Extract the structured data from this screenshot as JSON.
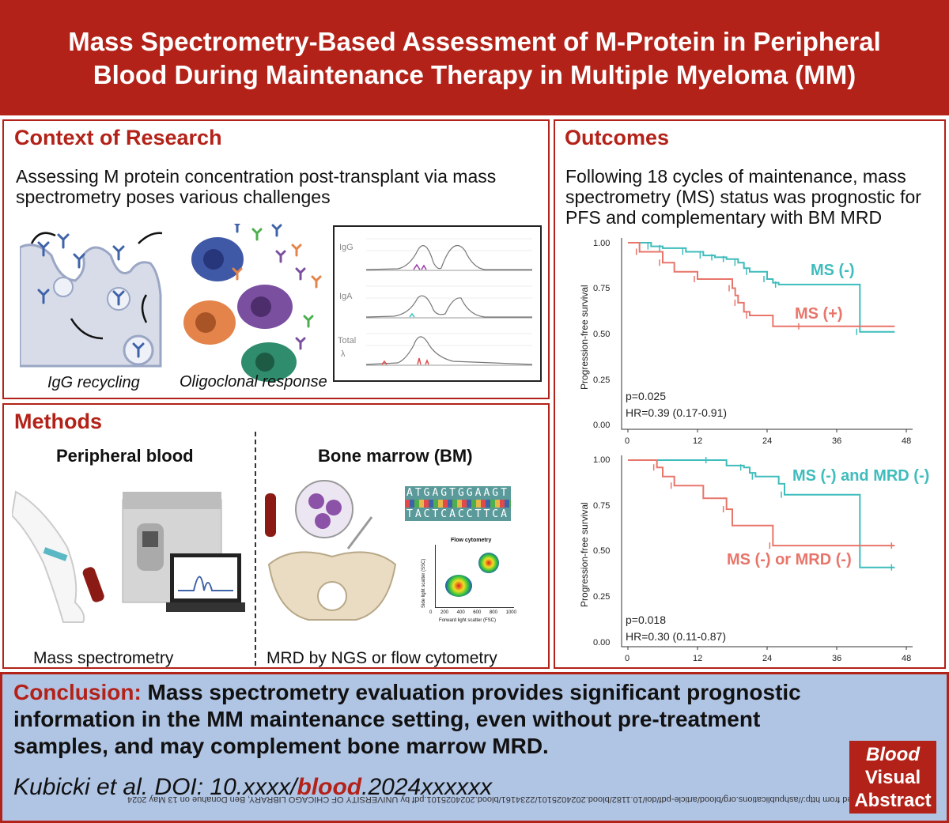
{
  "title": {
    "line1": "Mass Spectrometry-Based Assessment of M-Protein in Peripheral",
    "line2": "Blood During Maintenance Therapy in Multiple Myeloma (MM)"
  },
  "context": {
    "heading": "Context of Research",
    "text1": "Assessing M protein concentration post-transplant via mass",
    "text2": "spectrometry poses various challenges",
    "caption_left": "IgG recycling",
    "caption_right": "Oligoclonal response",
    "spectra_labels": [
      "IgG",
      "IgA",
      "Total",
      "λ"
    ]
  },
  "methods": {
    "heading": "Methods",
    "left_title": "Peripheral blood",
    "right_title": "Bone marrow (BM)",
    "left_caption": "Mass spectrometry",
    "right_caption": "MRD by NGS or flow cytometry",
    "dna_top": "ATGAGTGGAAGT",
    "dna_bottom": "TACTCACCTTCA",
    "flow": {
      "title": "Flow cytometry",
      "xlabel": "Forward light scatter (FSC)",
      "ylabel": "Side light scatter (SSC)",
      "ticks": [
        "0",
        "200",
        "400",
        "600",
        "800",
        "1000"
      ]
    }
  },
  "outcomes": {
    "heading": "Outcomes",
    "text1": "Following 18 cycles of maintenance, mass",
    "text2": "spectrometry (MS) status was prognostic for",
    "text3": "PFS and complementary with BM MRD"
  },
  "colors": {
    "accent": "#b32218",
    "teal": "#3fbcbc",
    "salmon": "#e8756a",
    "conclusion_bg": "#b0c4e4"
  },
  "chart_data": [
    {
      "type": "line",
      "title": "",
      "xlabel": "",
      "ylabel": "Progression-free survival",
      "xlim": [
        0,
        48
      ],
      "ylim": [
        0,
        1
      ],
      "xticks": [
        "0",
        "12",
        "24",
        "36",
        "48"
      ],
      "yticks": [
        "0.00",
        "0.25",
        "0.50",
        "0.75",
        "1.00"
      ],
      "pvalue": "p=0.025",
      "hr": "HR=0.39 (0.17-0.91)",
      "series": [
        {
          "name": "MS (-)",
          "color": "#3fbcbc",
          "x": [
            0,
            4,
            5,
            6,
            8,
            10,
            12,
            13,
            14,
            15,
            16,
            17,
            18,
            19,
            20,
            21,
            22,
            24,
            25,
            26,
            27,
            40,
            46
          ],
          "y": [
            1.0,
            0.98,
            0.98,
            0.97,
            0.97,
            0.95,
            0.95,
            0.93,
            0.93,
            0.92,
            0.92,
            0.91,
            0.91,
            0.89,
            0.86,
            0.84,
            0.84,
            0.8,
            0.78,
            0.77,
            0.77,
            0.51,
            0.51
          ]
        },
        {
          "name": "MS (+)",
          "color": "#e8756a",
          "x": [
            0,
            2,
            5,
            6,
            8,
            12,
            17,
            18,
            18.5,
            19,
            20,
            21,
            25,
            30,
            46
          ],
          "y": [
            1.0,
            0.95,
            0.95,
            0.89,
            0.84,
            0.8,
            0.8,
            0.75,
            0.71,
            0.67,
            0.62,
            0.6,
            0.54,
            0.54,
            0.54
          ]
        }
      ]
    },
    {
      "type": "line",
      "title": "",
      "xlabel": "",
      "ylabel": "Progression-free survival",
      "xlim": [
        0,
        48
      ],
      "ylim": [
        0,
        1
      ],
      "xticks": [
        "0",
        "12",
        "24",
        "36",
        "48"
      ],
      "yticks": [
        "0.00",
        "0.25",
        "0.50",
        "0.75",
        "1.00"
      ],
      "pvalue": "p=0.018",
      "hr": "HR=0.30 (0.11-0.87)",
      "series": [
        {
          "name": "MS (-) and MRD (-)",
          "color": "#3fbcbc",
          "x": [
            0,
            14,
            17,
            20,
            21,
            22,
            26,
            27,
            40,
            46
          ],
          "y": [
            1.0,
            1.0,
            0.97,
            0.96,
            0.93,
            0.91,
            0.87,
            0.81,
            0.41,
            0.41
          ]
        },
        {
          "name": "MS (-) or MRD (-)",
          "color": "#e8756a",
          "x": [
            0,
            5,
            6,
            8,
            13,
            17,
            18,
            25,
            40,
            46
          ],
          "y": [
            1.0,
            0.96,
            0.91,
            0.86,
            0.79,
            0.73,
            0.64,
            0.53,
            0.53,
            0.53
          ]
        }
      ]
    }
  ],
  "conclusion": {
    "label": "Conclusion:",
    "line1": "Mass spectrometry evaluation provides significant prognostic",
    "line2": "information in the MM maintenance setting, even without pre-treatment",
    "line3": "samples, and may complement bone marrow MRD.",
    "citation_pre": "Kubicki et al. DOI: 10.xxxx/",
    "citation_journal": "blood",
    "citation_post": ".2024xxxxxx"
  },
  "badge": {
    "line1": "Blood",
    "line2": "Visual",
    "line3": "Abstract"
  },
  "watermark": "Downloaded from http://ashpublications.org/blood/article-pdf/doi/10.1182/blood.2024025101/2234161/blood.2024025101.pdf by UNIVERSITY OF CHICAGO LIBRARY, Ben Donahue on 13 May 2024"
}
